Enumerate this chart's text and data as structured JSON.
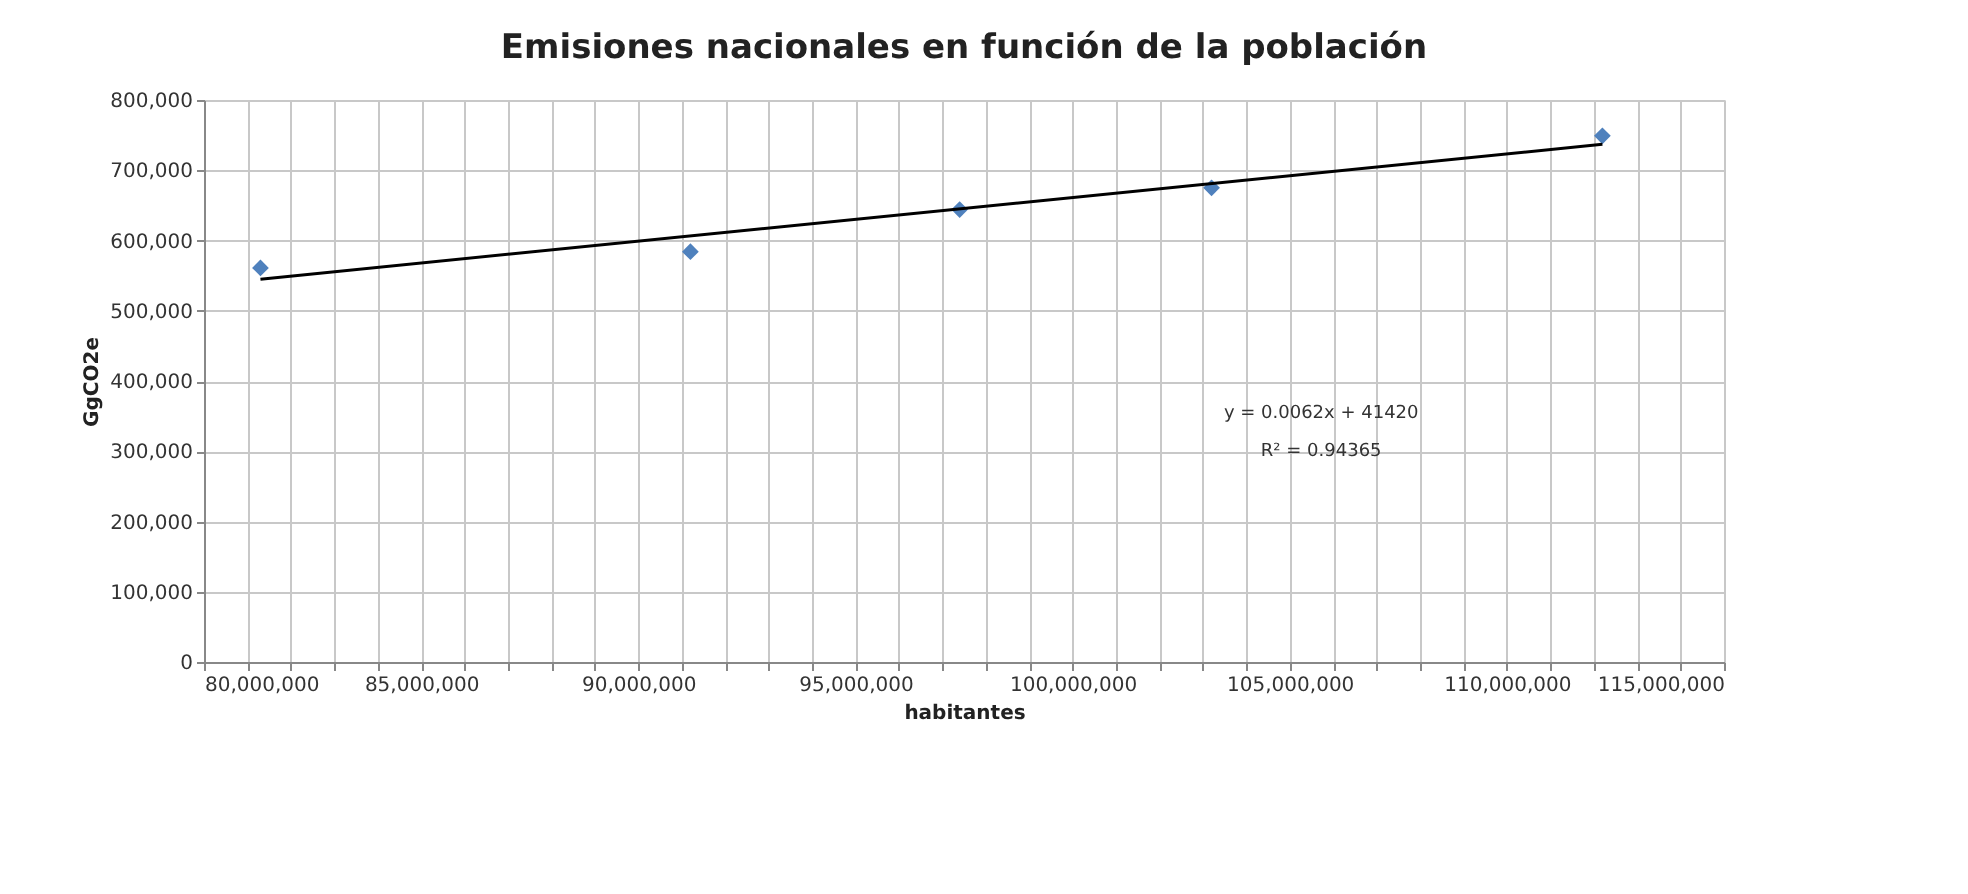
{
  "chart_data": {
    "type": "scatter",
    "title": "Emisiones nacionales en función de la población",
    "xlabel": "habitantes",
    "ylabel": "GgCO2e",
    "xlim": [
      80000000,
      115000000
    ],
    "xticks": [
      {
        "value": 80000000,
        "label": "80,000,000"
      },
      {
        "value": 81000000,
        "label": null
      },
      {
        "value": 82000000,
        "label": null
      },
      {
        "value": 83000000,
        "label": null
      },
      {
        "value": 84000000,
        "label": null
      },
      {
        "value": 85000000,
        "label": "85,000,000"
      },
      {
        "value": 86000000,
        "label": null
      },
      {
        "value": 87000000,
        "label": null
      },
      {
        "value": 88000000,
        "label": null
      },
      {
        "value": 89000000,
        "label": null
      },
      {
        "value": 90000000,
        "label": "90,000,000"
      },
      {
        "value": 91000000,
        "label": null
      },
      {
        "value": 92000000,
        "label": null
      },
      {
        "value": 93000000,
        "label": null
      },
      {
        "value": 94000000,
        "label": null
      },
      {
        "value": 95000000,
        "label": "95,000,000"
      },
      {
        "value": 96000000,
        "label": null
      },
      {
        "value": 97000000,
        "label": null
      },
      {
        "value": 98000000,
        "label": null
      },
      {
        "value": 99000000,
        "label": null
      },
      {
        "value": 100000000,
        "label": "100,000,000"
      },
      {
        "value": 101000000,
        "label": null
      },
      {
        "value": 102000000,
        "label": null
      },
      {
        "value": 103000000,
        "label": null
      },
      {
        "value": 104000000,
        "label": null
      },
      {
        "value": 105000000,
        "label": "105,000,000"
      },
      {
        "value": 106000000,
        "label": null
      },
      {
        "value": 107000000,
        "label": null
      },
      {
        "value": 108000000,
        "label": null
      },
      {
        "value": 109000000,
        "label": null
      },
      {
        "value": 110000000,
        "label": "110,000,000"
      },
      {
        "value": 111000000,
        "label": null
      },
      {
        "value": 112000000,
        "label": null
      },
      {
        "value": 113000000,
        "label": null
      },
      {
        "value": 114000000,
        "label": null
      },
      {
        "value": 115000000,
        "label": "115,000,000"
      }
    ],
    "ylim": [
      0,
      800000
    ],
    "yticks": [
      0,
      {
        "value": 100000,
        "label": "100,000"
      },
      {
        "value": 200000,
        "label": "200,000"
      },
      {
        "value": 300000,
        "label": "300,000"
      },
      {
        "value": 400000,
        "label": "400,000"
      },
      {
        "value": 500000,
        "label": "500,000"
      },
      {
        "value": 600000,
        "label": "600,000"
      },
      {
        "value": 700000,
        "label": "700,000"
      },
      {
        "value": 800000,
        "label": "800,000"
      }
    ],
    "grid": true,
    "series": [
      {
        "color": "#4f81bd",
        "marker": "diamond",
        "x": [
          81300000,
          91200000,
          97400000,
          103200000,
          112200000
        ],
        "values": [
          561000,
          584000,
          644000,
          675000,
          749000
        ]
      },
      {
        "type": "line",
        "color": "#000000",
        "line_style": "solid",
        "x": [
          81300000,
          112200000
        ],
        "values": [
          545000,
          737000
        ]
      }
    ],
    "annotations": [
      "y = 0.0062x + 41420",
      "R² = 0.94365"
    ]
  }
}
